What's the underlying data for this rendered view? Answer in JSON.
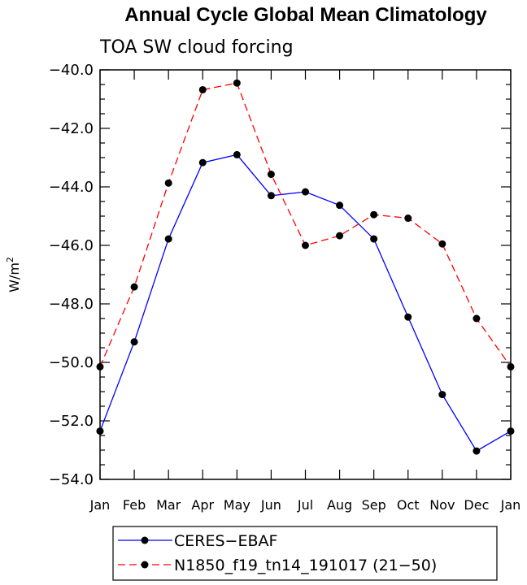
{
  "chart_data": {
    "type": "line",
    "title": "Annual Cycle Global Mean Climatology",
    "subtitle": "TOA SW cloud forcing",
    "ylabel": "W/m",
    "ylabel_sup": "2",
    "xlabel": "",
    "categories": [
      "Jan",
      "Feb",
      "Mar",
      "Apr",
      "May",
      "Jun",
      "Jul",
      "Aug",
      "Sep",
      "Oct",
      "Nov",
      "Dec",
      "Jan"
    ],
    "ylim": [
      -54.0,
      -40.0
    ],
    "yticks": [
      -54.0,
      -52.0,
      -50.0,
      -48.0,
      -46.0,
      -44.0,
      -42.0,
      -40.0
    ],
    "ytick_labels": [
      "−54.0",
      "−52.0",
      "−50.0",
      "−48.0",
      "−46.0",
      "−44.0",
      "−42.0",
      "−40.0"
    ],
    "legend_position": "bottom-left",
    "series": [
      {
        "name": "CERES−EBAF",
        "color": "#0000ff",
        "dash": "solid",
        "values": [
          -52.35,
          -49.3,
          -45.78,
          -43.17,
          -42.9,
          -44.3,
          -44.17,
          -44.63,
          -45.78,
          -48.45,
          -51.1,
          -53.03,
          -52.35
        ]
      },
      {
        "name": "N1850_f19_tn14_191017 (21−50)",
        "color": "#ff0000",
        "dash": "dashed",
        "values": [
          -50.15,
          -47.42,
          -43.87,
          -40.68,
          -40.45,
          -43.57,
          -46.0,
          -45.67,
          -44.95,
          -45.07,
          -45.95,
          -48.5,
          -50.15
        ]
      }
    ]
  }
}
